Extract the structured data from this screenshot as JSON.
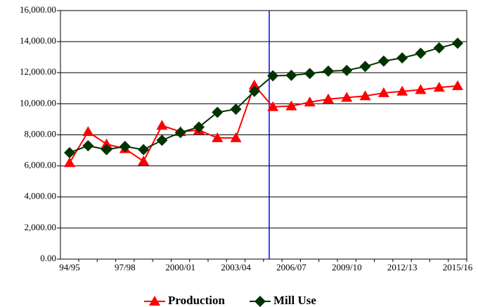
{
  "chart_data": {
    "type": "line",
    "categories": [
      "94/95",
      null,
      null,
      "97/98",
      null,
      null,
      "2000/01",
      null,
      null,
      "2003/04",
      null,
      null,
      "2006/07",
      null,
      null,
      "2009/10",
      null,
      null,
      "2012/13",
      null,
      null,
      "2015/16"
    ],
    "series": [
      {
        "name": "Production",
        "color": "#ff0000",
        "marker": "triangle",
        "values": [
          6200,
          8200,
          7400,
          7100,
          6300,
          8600,
          8200,
          8300,
          7800,
          7800,
          11200,
          9800,
          9850,
          10100,
          10300,
          10400,
          10500,
          10700,
          10800,
          10900,
          11050,
          11150
        ]
      },
      {
        "name": "Mill Use",
        "color": "#003300",
        "marker": "diamond",
        "values": [
          6850,
          7300,
          7050,
          7250,
          7050,
          7650,
          8150,
          8500,
          9450,
          9650,
          10800,
          11800,
          11830,
          11950,
          12100,
          12150,
          12400,
          12750,
          12950,
          13250,
          13600,
          13900
        ]
      }
    ],
    "ylim": [
      0,
      16000
    ],
    "yticks": [
      {
        "value": 0,
        "label": "0.00"
      },
      {
        "value": 2000,
        "label": "2,000.00"
      },
      {
        "value": 4000,
        "label": "4,000.00"
      },
      {
        "value": 6000,
        "label": "6,000.00"
      },
      {
        "value": 8000,
        "label": "8,000.00"
      },
      {
        "value": 10000,
        "label": "10,000.00"
      },
      {
        "value": 12000,
        "label": "12,000.00"
      },
      {
        "value": 14000,
        "label": "14,000.00"
      },
      {
        "value": 16000,
        "label": "16,000.00"
      }
    ],
    "grid": true,
    "legend": "bottom"
  }
}
